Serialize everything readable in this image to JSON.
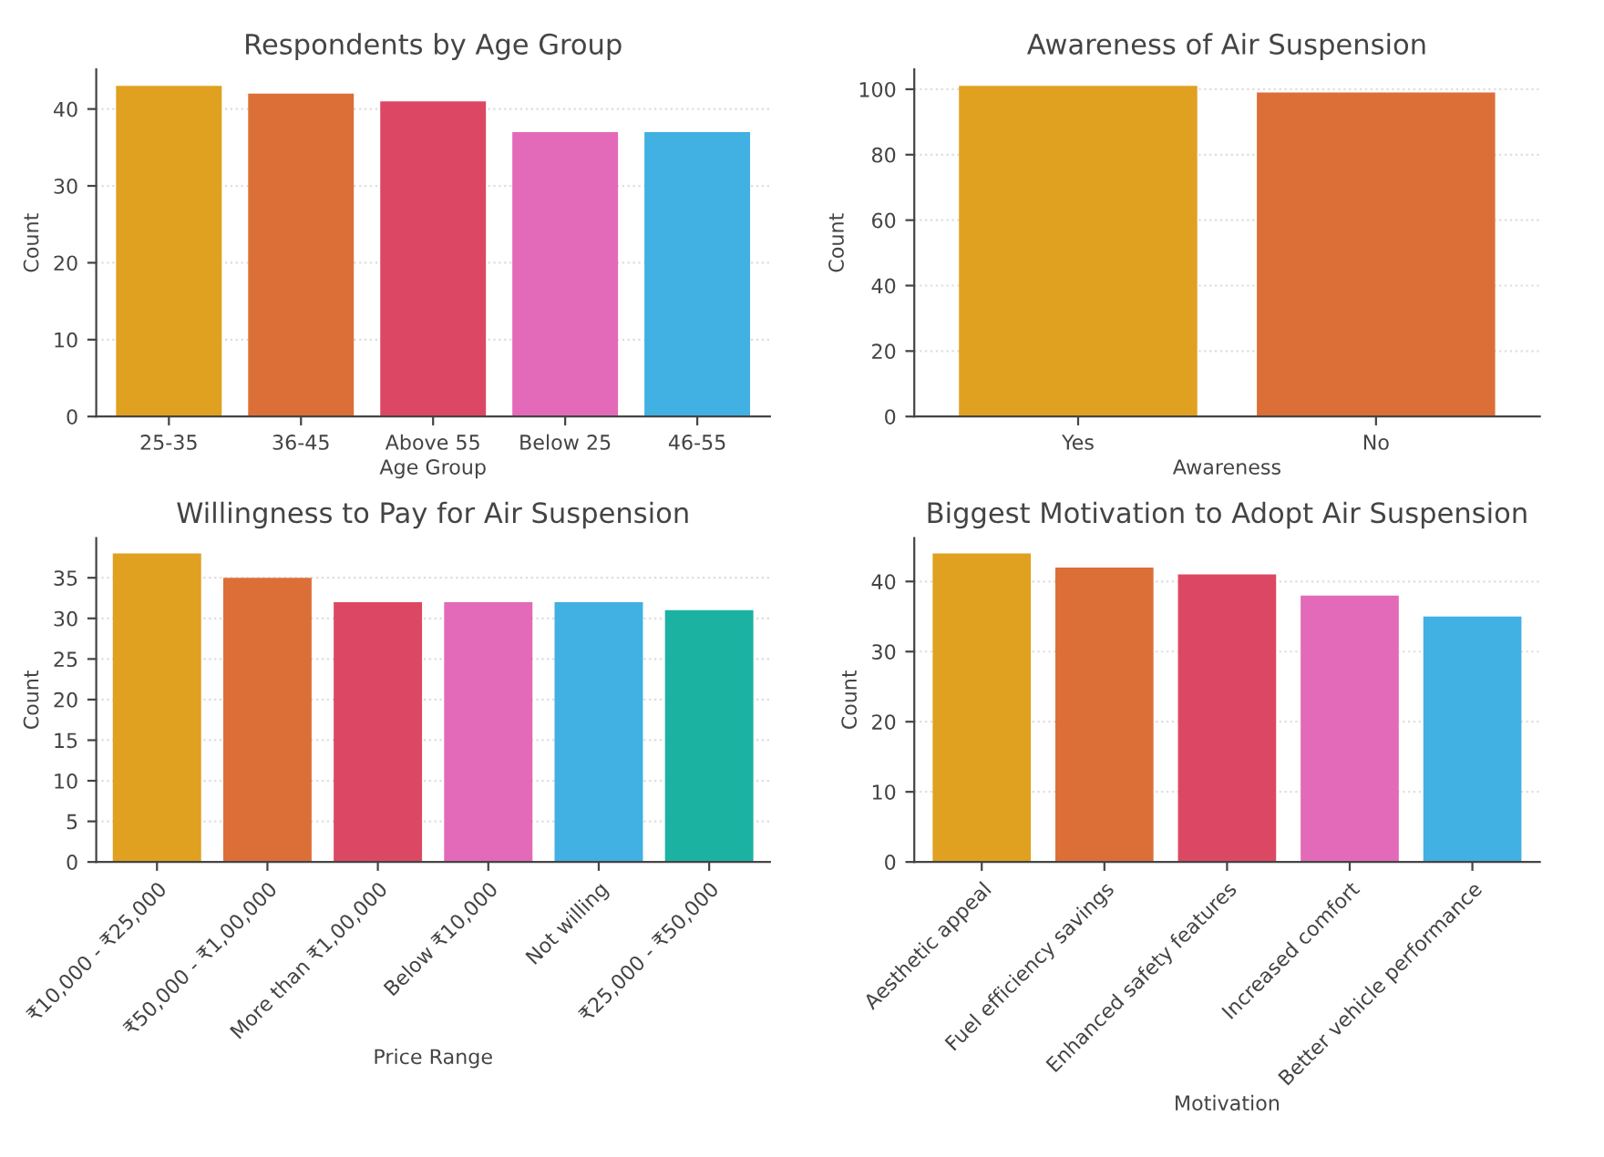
{
  "chart_data": [
    {
      "type": "bar",
      "title": "Respondents by Age Group",
      "xlabel": "Age Group",
      "ylabel": "Count",
      "categories": [
        "25-35",
        "36-45",
        "Above 55",
        "Below 25",
        "46-55"
      ],
      "values": [
        43,
        42,
        41,
        37,
        37
      ],
      "colors": [
        "#e0a020",
        "#dc6f38",
        "#dc4864",
        "#e26ab8",
        "#41b0e2"
      ],
      "ylim": [
        0,
        45.15
      ],
      "yticks": [
        0,
        10,
        20,
        30,
        40
      ],
      "grid": "y"
    },
    {
      "type": "bar",
      "title": "Awareness of Air Suspension",
      "xlabel": "Awareness",
      "ylabel": "Count",
      "categories": [
        "Yes",
        "No"
      ],
      "values": [
        101,
        99
      ],
      "colors": [
        "#e0a020",
        "#dc6f38"
      ],
      "ylim": [
        0,
        106.05
      ],
      "yticks": [
        0,
        20,
        40,
        60,
        80,
        100
      ],
      "grid": "y"
    },
    {
      "type": "bar",
      "title": "Willingness to Pay for Air Suspension",
      "xlabel": "Price Range",
      "ylabel": "Count",
      "categories": [
        "₹10,000 - ₹25,000",
        "₹50,000 - ₹1,00,000",
        "More than ₹1,00,000",
        "Below ₹10,000",
        "Not willing",
        "₹25,000 - ₹50,000"
      ],
      "values": [
        38,
        35,
        32,
        32,
        32,
        31
      ],
      "colors": [
        "#e0a020",
        "#dc6f38",
        "#dc4864",
        "#e26ab8",
        "#41b0e2",
        "#1bb2a2"
      ],
      "ylim": [
        0,
        39.9
      ],
      "yticks": [
        0,
        5,
        10,
        15,
        20,
        25,
        30,
        35
      ],
      "grid": "y"
    },
    {
      "type": "bar",
      "title": "Biggest Motivation to Adopt Air Suspension",
      "xlabel": "Motivation",
      "ylabel": "Count",
      "categories": [
        "Aesthetic appeal",
        "Fuel efficiency savings",
        "Enhanced safety features",
        "Increased comfort",
        "Better vehicle performance"
      ],
      "values": [
        44,
        42,
        41,
        38,
        35
      ],
      "colors": [
        "#e0a020",
        "#dc6f38",
        "#dc4864",
        "#e26ab8",
        "#41b0e2"
      ],
      "ylim": [
        0,
        46.2
      ],
      "yticks": [
        0,
        10,
        20,
        30,
        40
      ],
      "grid": "y"
    }
  ]
}
